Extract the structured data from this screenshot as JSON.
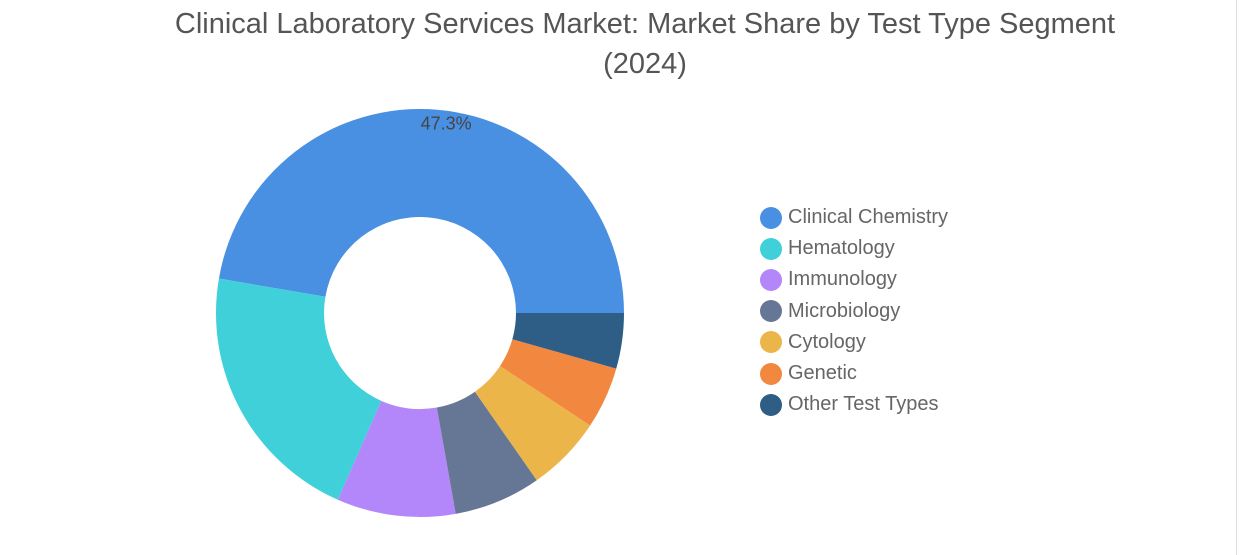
{
  "chart_data": {
    "type": "pie",
    "donut": true,
    "title": "Clinical Laboratory Services Market: Market Share by Test Type Segment (2024)",
    "title_lines": [
      "Clinical Laboratory Services Market: Market Share by Test Type Segment",
      "(2024)"
    ],
    "unit": "%",
    "legend_position": "right",
    "slices": [
      {
        "label": "Clinical Chemistry",
        "value": 47.3,
        "color": "#4a90e2",
        "data_label": "47.3%"
      },
      {
        "label": "Hematology",
        "value": 21.1,
        "color": "#3fd0d9",
        "data_label": ""
      },
      {
        "label": "Immunology",
        "value": 9.4,
        "color": "#b387fa",
        "data_label": ""
      },
      {
        "label": "Microbiology",
        "value": 6.9,
        "color": "#667796",
        "data_label": ""
      },
      {
        "label": "Cytology",
        "value": 6.0,
        "color": "#ebb54a",
        "data_label": ""
      },
      {
        "label": "Genetic",
        "value": 4.9,
        "color": "#f28740",
        "data_label": ""
      },
      {
        "label": "Other Test Types",
        "value": 4.4,
        "color": "#2e5e85",
        "data_label": ""
      }
    ]
  }
}
